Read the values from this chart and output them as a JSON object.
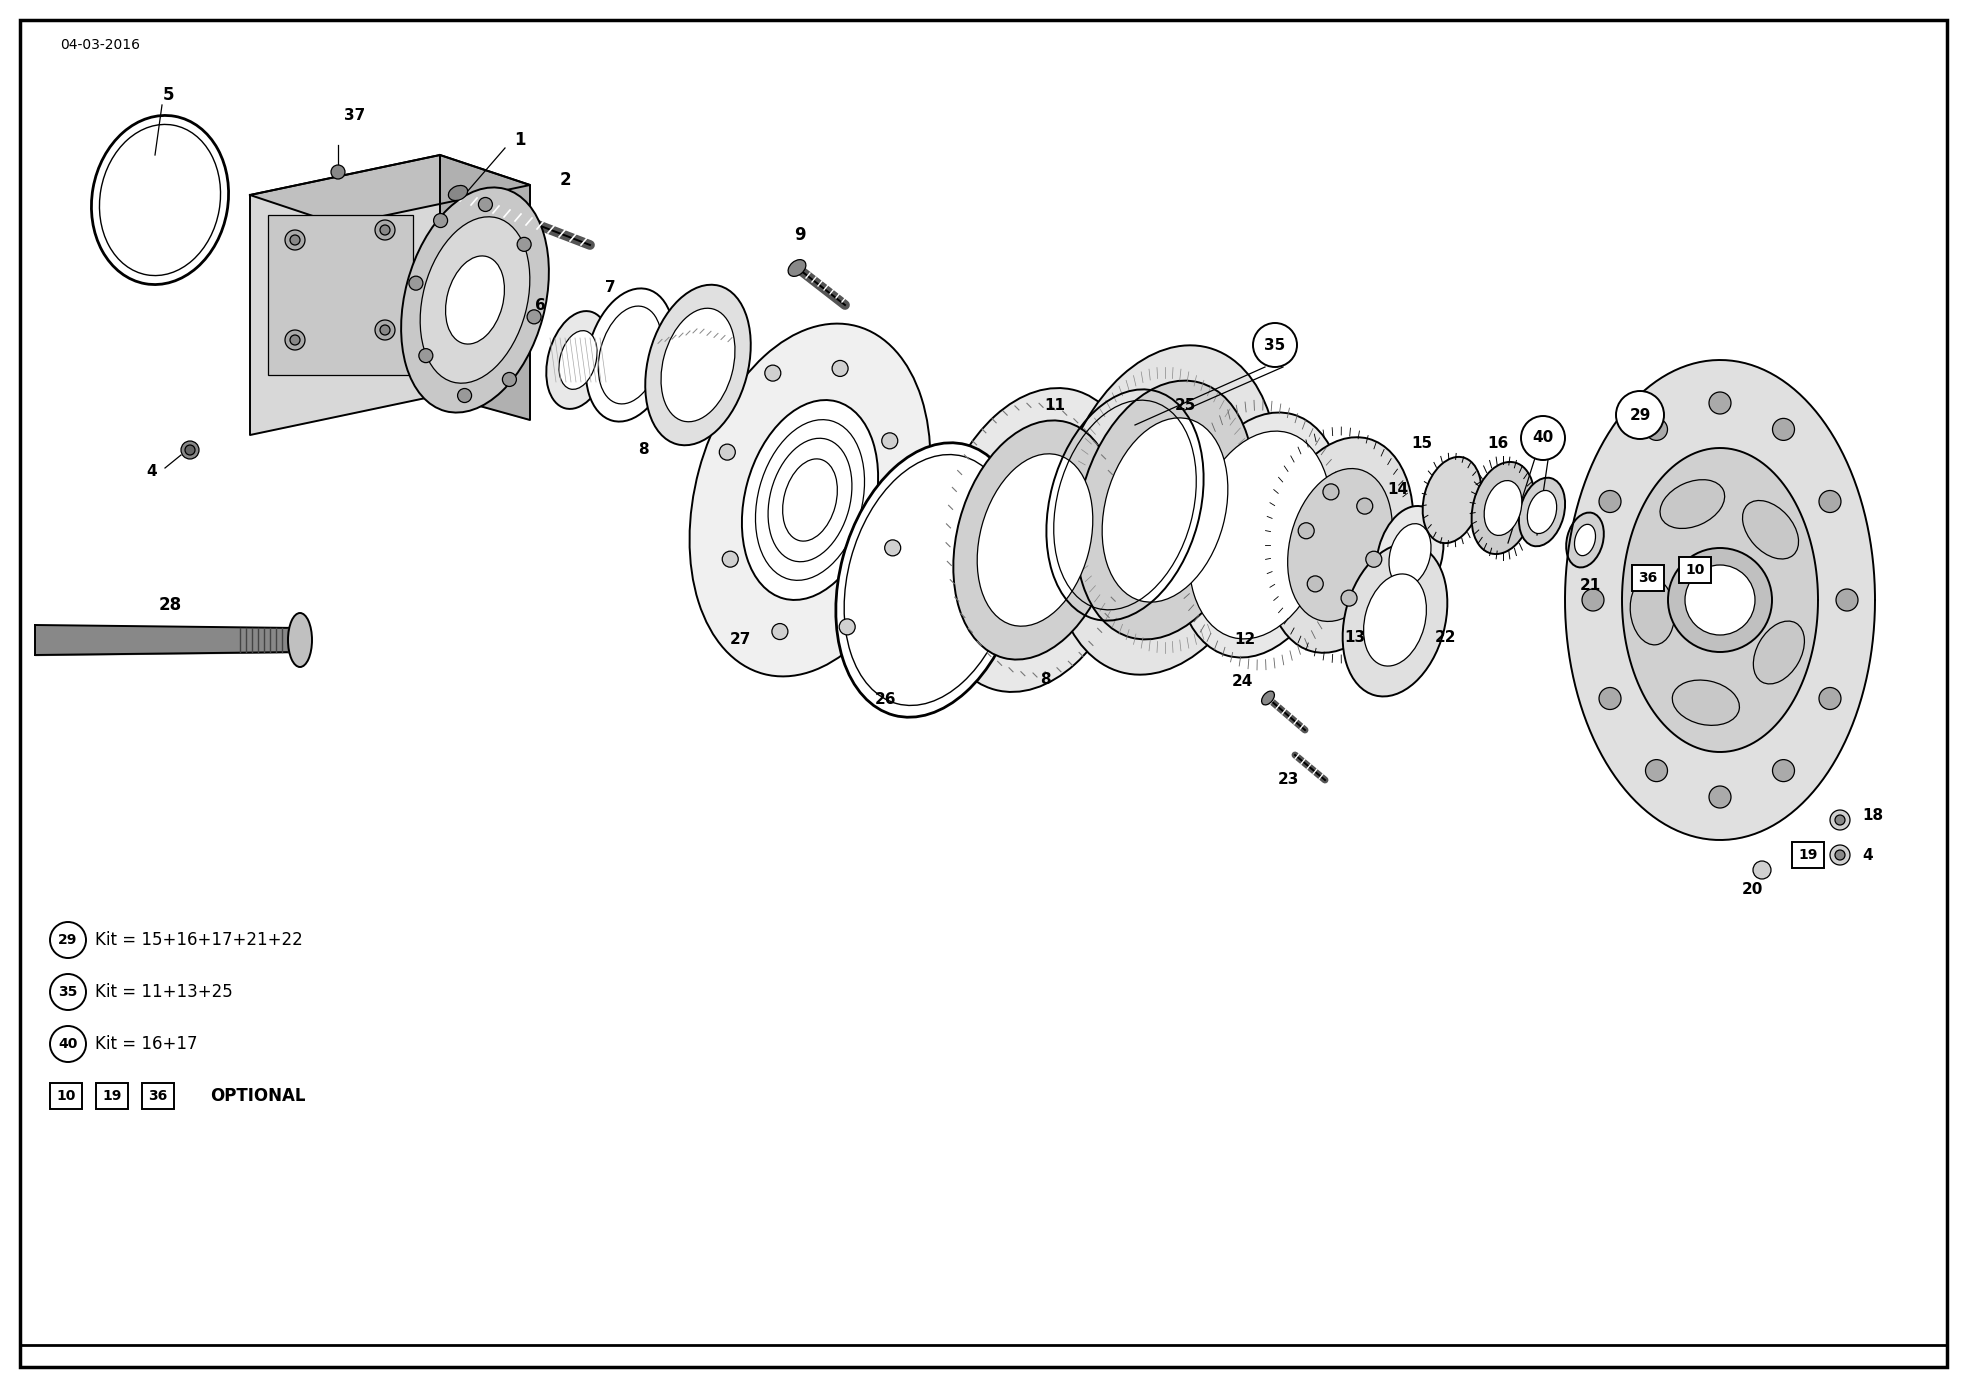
{
  "date": "04-03-2016",
  "bg": "#ffffff",
  "lc": "#000000",
  "gc": "#aaaaaa",
  "fig_w": 19.67,
  "fig_h": 13.87,
  "dpi": 100,
  "kit_items": [
    {
      "id": "29",
      "text": "Kit = 15+16+17+21+22"
    },
    {
      "id": "35",
      "text": "Kit = 11+13+25"
    },
    {
      "id": "40",
      "text": "Kit = 16+17"
    }
  ],
  "optional_ids": [
    "10",
    "19",
    "36"
  ],
  "optional_label": "OPTIONAL"
}
